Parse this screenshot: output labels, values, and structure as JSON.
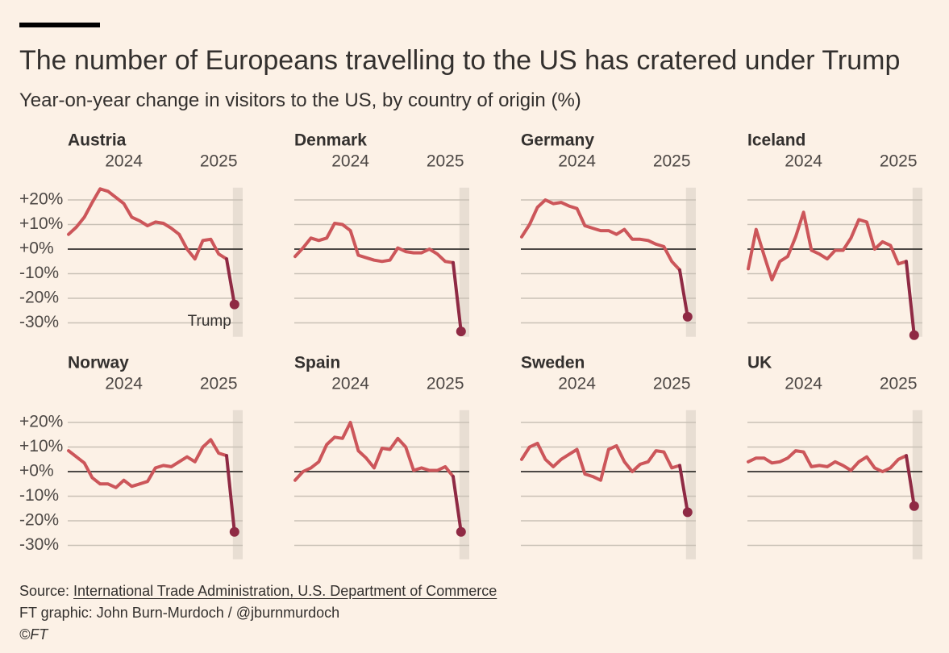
{
  "header": {
    "title": "The number of Europeans travelling to the US has cratered under Trump",
    "subtitle": "Year-on-year change in visitors to the US, by country of origin (%)"
  },
  "chart_data": {
    "type": "line",
    "x_ticks": [
      "2024",
      "2025"
    ],
    "y_ticks": [
      "+20%",
      "+10%",
      "+0%",
      "-10%",
      "-20%",
      "-30%"
    ],
    "y_tick_values": [
      20,
      10,
      0,
      -10,
      -20,
      -30
    ],
    "ylim": [
      -35,
      25
    ],
    "x_tick_index": [
      7,
      19
    ],
    "shaded_from_index": 21,
    "annotation": "Trump",
    "colors": {
      "line": "#cc565a",
      "post_line": "#8f2a44",
      "zero_line": "#33302e",
      "grid": "#c9c1b6",
      "shade": "#e8ded3"
    },
    "panels": [
      {
        "name": "Austria",
        "values": [
          6,
          9,
          13,
          19,
          24.5,
          23.5,
          21,
          18.5,
          13,
          11.5,
          9.5,
          11,
          10.5,
          8.5,
          6,
          0,
          -4,
          3.5,
          4,
          -2,
          -4,
          -22.5
        ]
      },
      {
        "name": "Denmark",
        "values": [
          -3,
          0.5,
          4.5,
          3.5,
          4.5,
          10.5,
          10,
          7.5,
          -2.5,
          -3.5,
          -4.5,
          -5,
          -4.5,
          0.5,
          -1,
          -1.5,
          -1.5,
          0,
          -2,
          -5,
          -5.5,
          -33.5
        ]
      },
      {
        "name": "Germany",
        "values": [
          5,
          10,
          17,
          20,
          18.5,
          19,
          17.5,
          16.5,
          9.5,
          8.5,
          7.5,
          7.5,
          6,
          8,
          4,
          4,
          3.5,
          2,
          1,
          -5,
          -8.5,
          -27.5
        ]
      },
      {
        "name": "Iceland",
        "values": [
          -8,
          8,
          -2.5,
          -12.5,
          -5,
          -3,
          5,
          15,
          -0.5,
          -2,
          -4,
          -0.5,
          -0.5,
          4.5,
          12,
          11,
          0,
          3,
          1.5,
          -6,
          -5,
          -35
        ]
      },
      {
        "name": "Norway",
        "values": [
          8.5,
          6,
          3.5,
          -2.5,
          -5,
          -5,
          -6.5,
          -3.5,
          -6,
          -5,
          -4,
          1.5,
          2.5,
          2,
          4,
          6,
          4,
          10,
          13,
          7.5,
          6.5,
          -24.5
        ]
      },
      {
        "name": "Spain",
        "values": [
          -3.5,
          0,
          1.5,
          4,
          11,
          14,
          13.5,
          20,
          8.5,
          5.5,
          1.5,
          9.5,
          9,
          13.5,
          10,
          0.5,
          1.5,
          0.5,
          0.5,
          2,
          -2,
          -24.5
        ]
      },
      {
        "name": "Sweden",
        "values": [
          5,
          10,
          11.5,
          5,
          2,
          5,
          7,
          9,
          -1,
          -2,
          -3.5,
          9,
          10.5,
          4,
          0,
          3,
          4,
          8.5,
          8,
          1.5,
          2.5,
          -16.5
        ]
      },
      {
        "name": "UK",
        "values": [
          4,
          5.5,
          5.5,
          3.5,
          4,
          5.5,
          8.5,
          8,
          2,
          2.5,
          2,
          4,
          2.5,
          0.5,
          4,
          6,
          1.5,
          0,
          1.5,
          5,
          6.5,
          -14
        ]
      }
    ]
  },
  "footer": {
    "source_prefix": "Source: ",
    "source_link": "International Trade Administration, U.S. Department of Commerce",
    "credit": "FT graphic: John Burn-Murdoch / @jburnmurdoch",
    "copyright": "©FT"
  }
}
